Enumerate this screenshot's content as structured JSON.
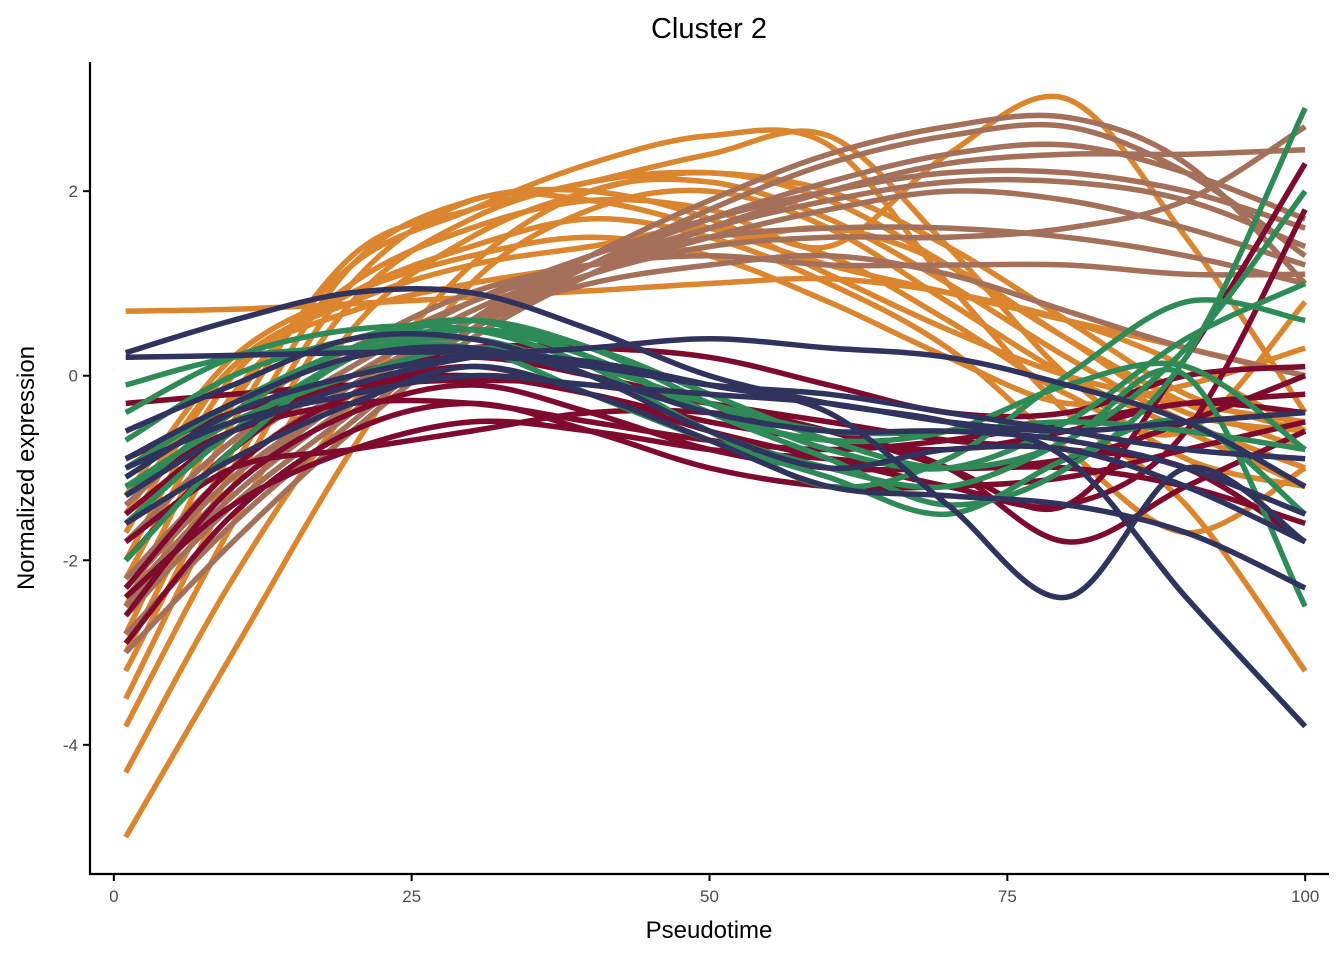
{
  "chart_data": {
    "type": "line",
    "title": "Cluster 2",
    "xlabel": "Pseudotime",
    "ylabel": "Normalized expression",
    "xlim": [
      -2,
      102
    ],
    "ylim": [
      -5.4,
      3.4
    ],
    "xticks": [
      0,
      25,
      50,
      75,
      100
    ],
    "yticks": [
      -4,
      -2,
      0,
      2
    ],
    "xtick_labels": [
      "0",
      "25",
      "50",
      "75",
      "100"
    ],
    "ytick_labels": [
      "-4",
      "-2",
      "0",
      "2"
    ],
    "grid": false,
    "legend": "none",
    "groups": [
      {
        "color": "#DB862E"
      },
      {
        "color": "#A4705A"
      },
      {
        "color": "#7E0A2E"
      },
      {
        "color": "#2E8B57"
      },
      {
        "color": "#31335F"
      }
    ],
    "x": [
      1,
      10,
      20,
      30,
      40,
      50,
      60,
      70,
      80,
      90,
      100
    ],
    "series": [
      {
        "group": 0,
        "values": [
          -5.0,
          -3.0,
          -0.8,
          1.0,
          1.8,
          2.0,
          1.6,
          0.8,
          0.0,
          -0.6,
          -1.2
        ]
      },
      {
        "group": 0,
        "values": [
          -4.3,
          -2.2,
          -0.3,
          1.2,
          2.0,
          2.1,
          1.7,
          1.0,
          0.2,
          -0.5,
          -1.0
        ]
      },
      {
        "group": 0,
        "values": [
          -3.8,
          -1.6,
          0.5,
          1.5,
          2.0,
          2.2,
          1.9,
          1.2,
          0.4,
          -0.3,
          -0.8
        ]
      },
      {
        "group": 0,
        "values": [
          -3.5,
          -1.2,
          0.8,
          1.7,
          2.1,
          2.2,
          2.0,
          1.4,
          0.6,
          -0.2,
          -0.6
        ]
      },
      {
        "group": 0,
        "values": [
          -3.2,
          -1.0,
          1.0,
          1.9,
          1.9,
          1.6,
          1.2,
          0.9,
          0.6,
          0.3,
          0.0
        ]
      },
      {
        "group": 0,
        "values": [
          -3.0,
          -0.8,
          1.2,
          1.9,
          2.0,
          1.7,
          1.1,
          0.5,
          0.0,
          -0.3,
          -0.5
        ]
      },
      {
        "group": 0,
        "values": [
          -2.8,
          -0.5,
          1.3,
          1.8,
          2.1,
          2.4,
          2.6,
          1.4,
          0.0,
          -0.9,
          -1.2
        ]
      },
      {
        "group": 0,
        "values": [
          -2.5,
          -0.3,
          1.2,
          1.8,
          2.3,
          2.6,
          2.5,
          1.0,
          -0.4,
          -1.4,
          -3.2
        ]
      },
      {
        "group": 0,
        "values": [
          -2.2,
          -0.2,
          1.0,
          1.6,
          1.9,
          1.8,
          1.4,
          2.4,
          3.0,
          1.5,
          -0.4
        ]
      },
      {
        "group": 0,
        "values": [
          -2.0,
          0.0,
          0.9,
          1.4,
          1.7,
          1.5,
          1.0,
          0.3,
          -0.8,
          -1.7,
          -1.0
        ]
      },
      {
        "group": 0,
        "values": [
          -1.7,
          0.1,
          0.8,
          1.2,
          1.4,
          1.6,
          1.3,
          0.6,
          -0.2,
          -0.6,
          0.8
        ]
      },
      {
        "group": 0,
        "values": [
          -1.5,
          0.1,
          0.7,
          1.0,
          1.2,
          1.4,
          1.6,
          1.2,
          0.4,
          -0.4,
          -0.6
        ]
      },
      {
        "group": 0,
        "values": [
          0.7,
          0.72,
          0.78,
          0.85,
          0.92,
          1.0,
          1.05,
          0.9,
          0.6,
          0.1,
          -0.6
        ]
      },
      {
        "group": 0,
        "values": [
          -1.3,
          0.2,
          0.9,
          1.3,
          1.5,
          1.3,
          0.8,
          0.2,
          -0.3,
          -0.1,
          0.3
        ]
      },
      {
        "group": 1,
        "values": [
          -3.0,
          -1.8,
          -0.6,
          0.4,
          1.1,
          1.6,
          2.0,
          2.3,
          2.4,
          2.4,
          2.45
        ]
      },
      {
        "group": 1,
        "values": [
          -2.8,
          -1.6,
          -0.5,
          0.5,
          1.2,
          1.8,
          2.3,
          2.6,
          2.7,
          2.2,
          1.3
        ]
      },
      {
        "group": 1,
        "values": [
          -2.6,
          -1.4,
          -0.4,
          0.6,
          1.3,
          1.9,
          2.4,
          2.7,
          2.8,
          2.3,
          1.0
        ]
      },
      {
        "group": 1,
        "values": [
          -2.5,
          -1.3,
          -0.3,
          0.5,
          1.1,
          1.5,
          1.8,
          2.0,
          1.9,
          1.6,
          1.2
        ]
      },
      {
        "group": 1,
        "values": [
          -2.3,
          -1.1,
          -0.2,
          0.6,
          1.1,
          1.4,
          1.5,
          1.5,
          1.6,
          1.9,
          2.7
        ]
      },
      {
        "group": 1,
        "values": [
          -2.2,
          -1.0,
          -0.1,
          0.6,
          1.0,
          1.2,
          1.3,
          1.1,
          0.7,
          0.3,
          0.0
        ]
      },
      {
        "group": 1,
        "values": [
          -2.0,
          -0.8,
          0.0,
          0.7,
          1.2,
          1.6,
          1.9,
          2.1,
          2.1,
          1.9,
          1.4
        ]
      },
      {
        "group": 1,
        "values": [
          -1.8,
          -0.7,
          0.1,
          0.8,
          1.3,
          1.7,
          2.0,
          2.2,
          2.2,
          2.0,
          1.6
        ]
      },
      {
        "group": 1,
        "values": [
          -1.6,
          -0.6,
          0.2,
          0.8,
          1.2,
          1.5,
          1.6,
          1.6,
          1.5,
          1.3,
          1.0
        ]
      },
      {
        "group": 1,
        "values": [
          -1.4,
          -0.4,
          0.3,
          0.9,
          1.2,
          1.3,
          1.2,
          1.2,
          1.2,
          1.1,
          1.1
        ]
      },
      {
        "group": 1,
        "values": [
          -2.4,
          -1.2,
          -0.2,
          0.6,
          1.2,
          1.7,
          2.1,
          2.4,
          2.5,
          2.2,
          1.7
        ]
      },
      {
        "group": 2,
        "values": [
          -2.9,
          -1.5,
          -0.6,
          -0.3,
          -0.6,
          -1.0,
          -1.2,
          -1.2,
          -1.1,
          -0.8,
          -0.5
        ]
      },
      {
        "group": 2,
        "values": [
          -2.6,
          -1.2,
          -0.4,
          -0.1,
          -0.4,
          -0.8,
          -1.0,
          -1.0,
          -0.9,
          -0.5,
          0.0
        ]
      },
      {
        "group": 2,
        "values": [
          -2.3,
          -1.0,
          -0.2,
          0.1,
          -0.2,
          -0.6,
          -0.9,
          -1.2,
          -1.4,
          -0.6,
          1.8
        ]
      },
      {
        "group": 2,
        "values": [
          -2.0,
          -0.8,
          0.0,
          0.2,
          0.0,
          -0.3,
          -0.6,
          -1.0,
          -1.4,
          0.2,
          2.3
        ]
      },
      {
        "group": 2,
        "values": [
          -1.8,
          -1.0,
          -0.8,
          -0.6,
          -0.4,
          -0.4,
          -0.6,
          -1.0,
          -1.8,
          -1.2,
          -0.6
        ]
      },
      {
        "group": 2,
        "values": [
          -1.5,
          -0.6,
          0.0,
          0.3,
          0.3,
          0.2,
          -0.1,
          -0.4,
          -0.4,
          0.0,
          0.1
        ]
      },
      {
        "group": 2,
        "values": [
          -1.2,
          -0.6,
          -0.3,
          -0.3,
          -0.5,
          -0.7,
          -0.8,
          -0.7,
          -0.5,
          -0.3,
          -0.2
        ]
      },
      {
        "group": 2,
        "values": [
          -0.9,
          -0.4,
          -0.1,
          0.0,
          -0.2,
          -0.5,
          -0.7,
          -0.8,
          -0.6,
          -0.3,
          -0.4
        ]
      },
      {
        "group": 2,
        "values": [
          -0.3,
          -0.2,
          -0.1,
          -0.05,
          -0.1,
          -0.3,
          -0.5,
          -0.7,
          -0.8,
          -1.0,
          -1.8
        ]
      },
      {
        "group": 2,
        "values": [
          -2.4,
          -1.4,
          -0.8,
          -0.5,
          -0.6,
          -0.8,
          -0.9,
          -1.0,
          -1.0,
          -1.2,
          -1.6
        ]
      },
      {
        "group": 3,
        "values": [
          -1.6,
          -0.6,
          0.2,
          0.5,
          0.2,
          -0.4,
          -0.9,
          -1.4,
          -1.0,
          0.2,
          2.9
        ]
      },
      {
        "group": 3,
        "values": [
          -1.3,
          -0.4,
          0.3,
          0.5,
          0.3,
          -0.2,
          -0.7,
          -1.0,
          -0.7,
          0.3,
          2.0
        ]
      },
      {
        "group": 3,
        "values": [
          -1.0,
          -0.3,
          0.3,
          0.6,
          0.3,
          -0.3,
          -0.8,
          -1.0,
          -0.5,
          0.4,
          1.0
        ]
      },
      {
        "group": 3,
        "values": [
          -0.7,
          0.0,
          0.4,
          0.6,
          0.2,
          -0.4,
          -0.7,
          -0.6,
          -0.1,
          0.1,
          -0.8
        ]
      },
      {
        "group": 3,
        "values": [
          -0.4,
          0.2,
          0.5,
          0.5,
          0.1,
          -0.6,
          -1.0,
          -1.2,
          -0.7,
          0.0,
          -2.5
        ]
      },
      {
        "group": 3,
        "values": [
          -0.1,
          0.2,
          0.3,
          0.3,
          -0.2,
          -0.7,
          -1.1,
          -1.5,
          -0.9,
          -0.5,
          -1.5
        ]
      },
      {
        "group": 3,
        "values": [
          -2.0,
          -0.8,
          0.2,
          0.4,
          0.0,
          -0.6,
          -1.2,
          -0.9,
          0.0,
          0.8,
          0.6
        ]
      },
      {
        "group": 3,
        "values": [
          -1.2,
          -0.5,
          0.0,
          0.3,
          0.1,
          -0.3,
          -0.6,
          -0.6,
          -0.5,
          -0.6,
          -0.8
        ]
      },
      {
        "group": 4,
        "values": [
          0.25,
          0.6,
          0.9,
          0.9,
          0.5,
          0.0,
          -0.3,
          -0.5,
          -0.9,
          -2.4,
          -3.8
        ]
      },
      {
        "group": 4,
        "values": [
          0.2,
          0.22,
          0.25,
          0.25,
          0.15,
          -0.1,
          -0.4,
          -1.4,
          -2.4,
          -1.0,
          -1.8
        ]
      },
      {
        "group": 4,
        "values": [
          -0.6,
          -0.1,
          0.4,
          0.4,
          0.0,
          -0.6,
          -1.0,
          -0.8,
          -0.8,
          -1.2,
          -1.8
        ]
      },
      {
        "group": 4,
        "values": [
          -0.9,
          -0.3,
          0.2,
          0.3,
          0.0,
          -0.4,
          -0.6,
          -0.6,
          -0.7,
          -1.0,
          -1.5
        ]
      },
      {
        "group": 4,
        "values": [
          -1.1,
          -0.4,
          0.0,
          0.2,
          0.1,
          -0.1,
          -0.2,
          -0.4,
          -0.6,
          -0.8,
          -0.9
        ]
      },
      {
        "group": 4,
        "values": [
          -1.3,
          -0.6,
          -0.1,
          0.2,
          0.3,
          0.4,
          0.3,
          0.2,
          -0.1,
          -0.5,
          -1.2
        ]
      },
      {
        "group": 4,
        "values": [
          -1.6,
          -0.9,
          -0.3,
          0.1,
          -0.2,
          -0.7,
          -1.2,
          -1.3,
          -1.4,
          -1.7,
          -2.3
        ]
      },
      {
        "group": 4,
        "values": [
          -1.0,
          -0.5,
          -0.2,
          0.0,
          -0.1,
          -0.2,
          -0.3,
          -0.5,
          -0.6,
          -0.5,
          -0.4
        ]
      }
    ]
  }
}
